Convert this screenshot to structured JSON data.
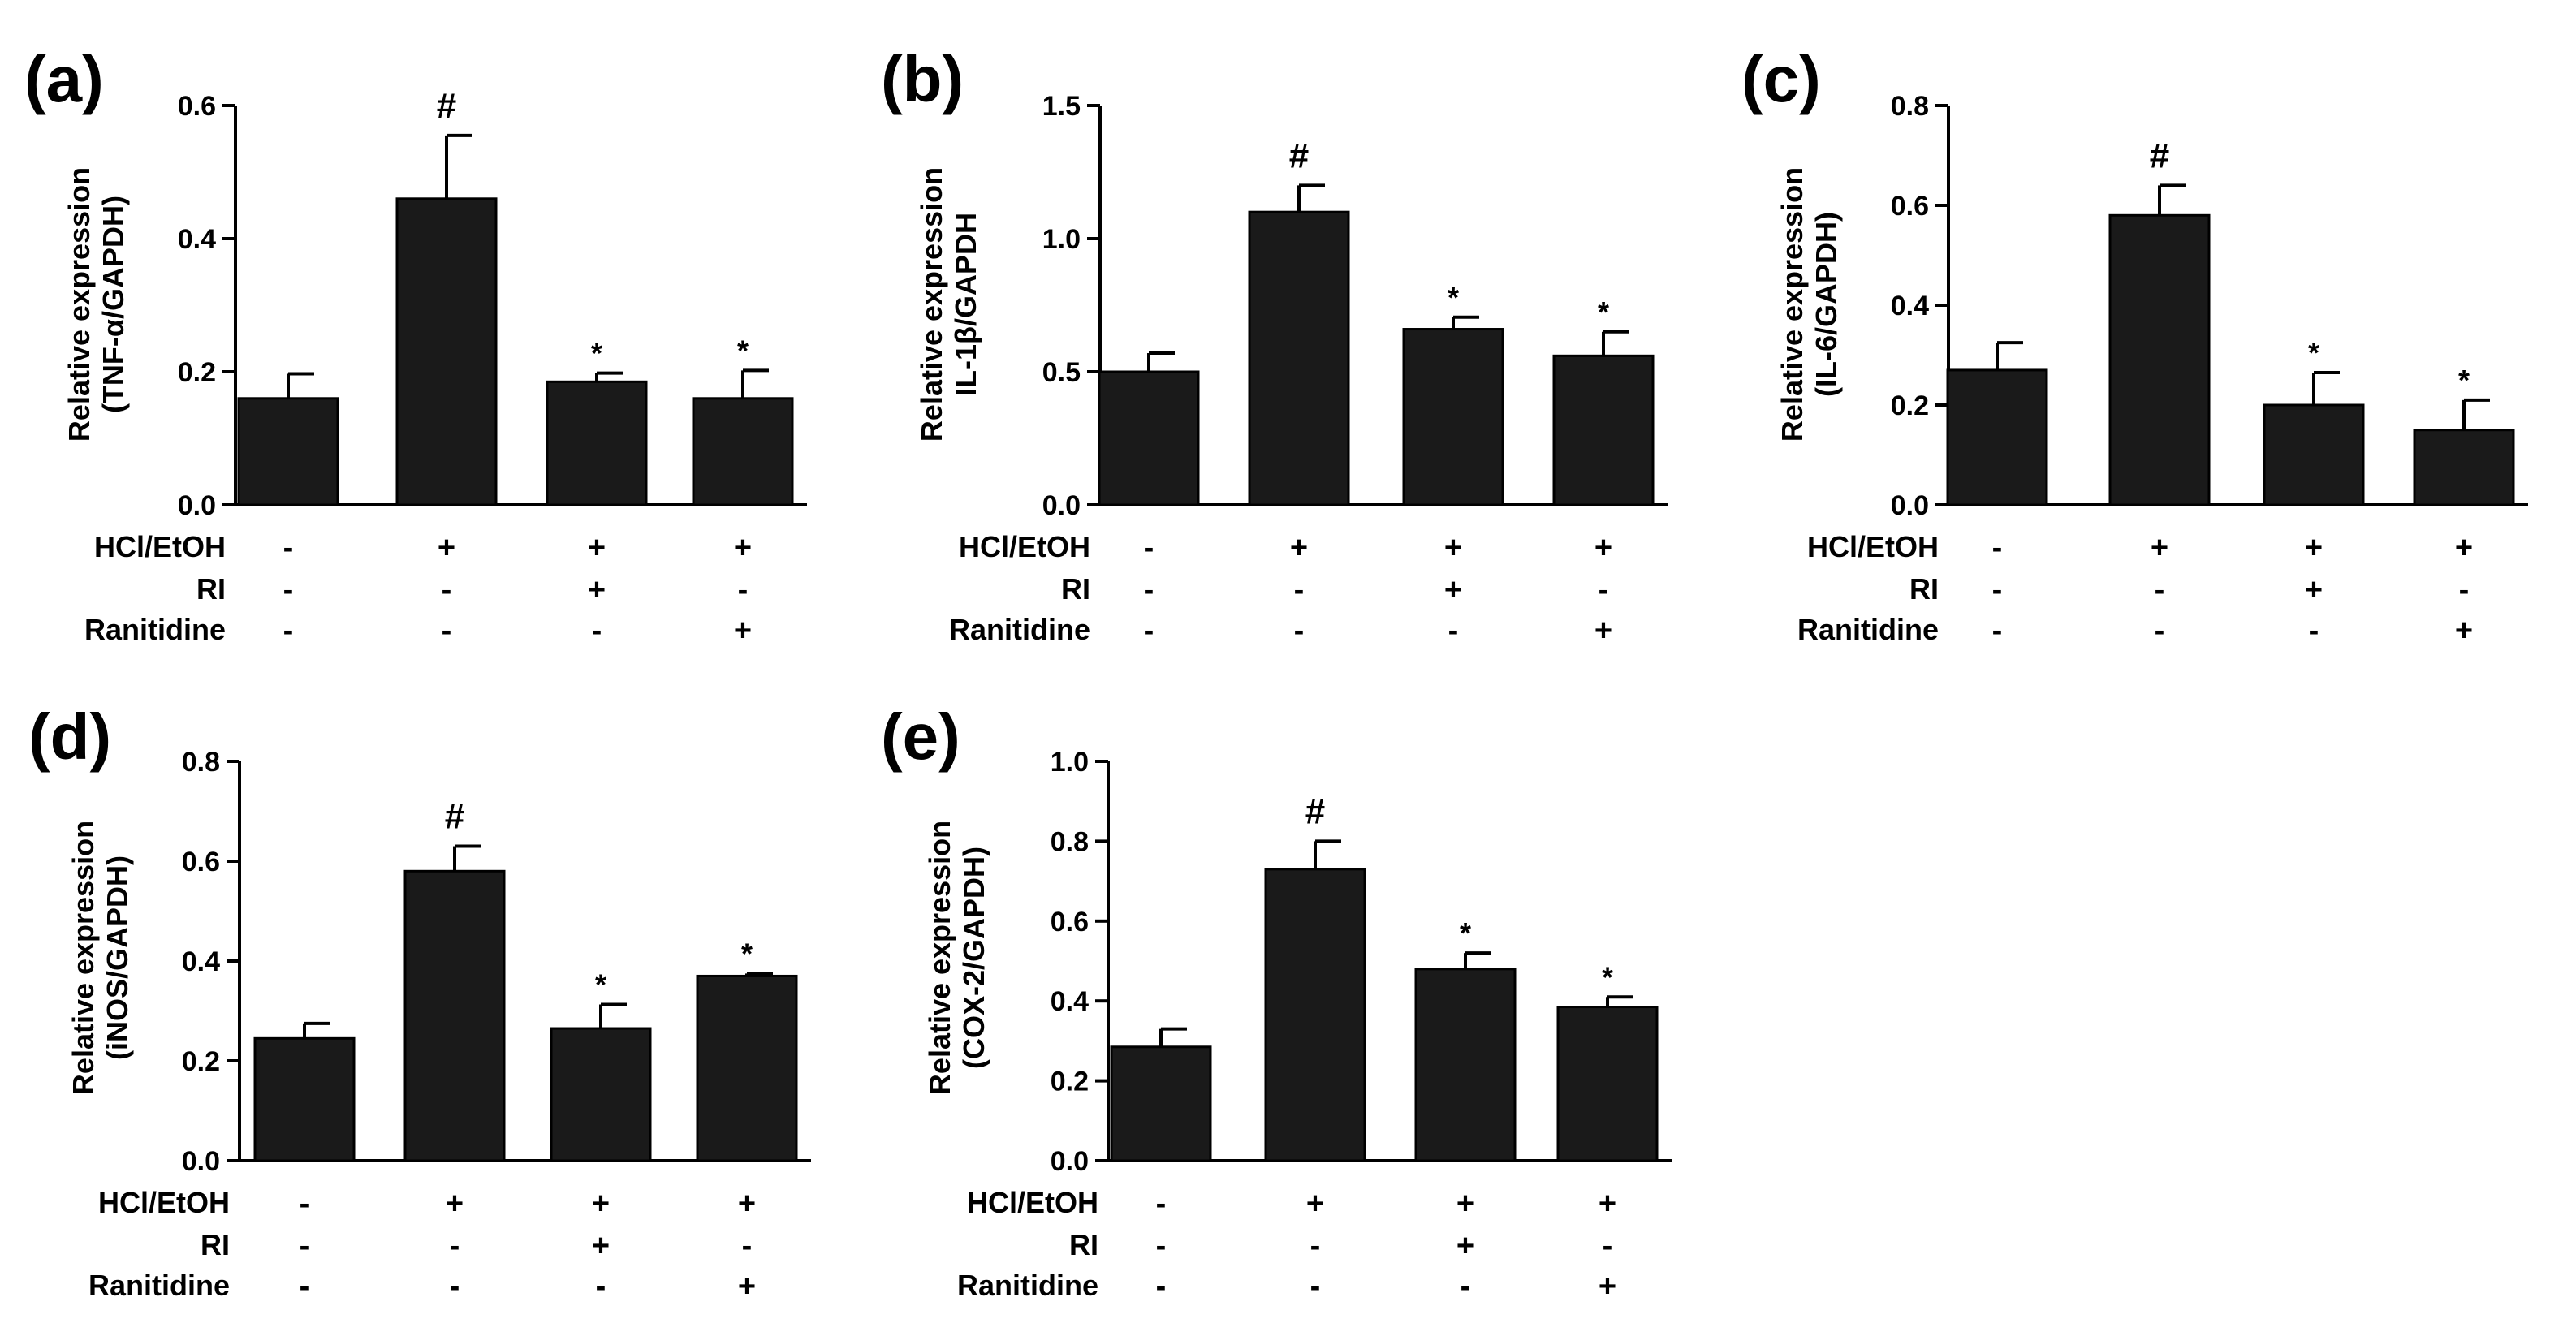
{
  "figure": {
    "row_names": [
      "HCl/EtOH",
      "RI",
      "Ranitidine"
    ],
    "conditions": [
      [
        "-",
        "-",
        "-"
      ],
      [
        "+",
        "-",
        "-"
      ],
      [
        "+",
        "+",
        "-"
      ],
      [
        "+",
        "-",
        "+"
      ]
    ]
  },
  "chart_data": [
    {
      "type": "bar",
      "panel": "(a)",
      "ylabel_lines": [
        "Relative expression",
        "(TNF-α/GAPDH)"
      ],
      "ylim": [
        0,
        0.6
      ],
      "yticks": [
        "0.0",
        "0.2",
        "0.4",
        "0.6"
      ],
      "values": [
        0.16,
        0.46,
        0.185,
        0.16
      ],
      "errors": [
        0.037,
        0.095,
        0.013,
        0.042
      ],
      "annotations": [
        "",
        "#",
        "*",
        "*"
      ],
      "bar_color": "#1a1a1a"
    },
    {
      "type": "bar",
      "panel": "(b)",
      "ylabel_lines": [
        "Relative expression",
        "IL-1β/GAPDH"
      ],
      "ylim": [
        0,
        1.5
      ],
      "yticks": [
        "0.0",
        "0.5",
        "1.0",
        "1.5"
      ],
      "values": [
        0.5,
        1.1,
        0.66,
        0.56
      ],
      "errors": [
        0.07,
        0.1,
        0.045,
        0.09
      ],
      "annotations": [
        "",
        "#",
        "*",
        "*"
      ],
      "bar_color": "#1a1a1a"
    },
    {
      "type": "bar",
      "panel": "(c)",
      "ylabel_lines": [
        "Relative expression",
        "(IL-6/GAPDH)"
      ],
      "ylim": [
        0,
        0.8
      ],
      "yticks": [
        "0.0",
        "0.2",
        "0.4",
        "0.6",
        "0.8"
      ],
      "values": [
        0.27,
        0.58,
        0.2,
        0.15
      ],
      "errors": [
        0.055,
        0.06,
        0.065,
        0.06
      ],
      "annotations": [
        "",
        "#",
        "*",
        "*"
      ],
      "bar_color": "#1a1a1a"
    },
    {
      "type": "bar",
      "panel": "(d)",
      "ylabel_lines": [
        "Relative expression",
        "(iNOS/GAPDH)"
      ],
      "ylim": [
        0,
        0.8
      ],
      "yticks": [
        "0.0",
        "0.2",
        "0.4",
        "0.6",
        "0.8"
      ],
      "values": [
        0.245,
        0.58,
        0.265,
        0.37
      ],
      "errors": [
        0.03,
        0.05,
        0.048,
        0.005
      ],
      "annotations": [
        "",
        "#",
        "*",
        "*"
      ],
      "bar_color": "#1a1a1a"
    },
    {
      "type": "bar",
      "panel": "(e)",
      "ylabel_lines": [
        "Relative expression",
        "(COX-2/GAPDH)"
      ],
      "ylim": [
        0,
        1.0
      ],
      "yticks": [
        "0.0",
        "0.2",
        "0.4",
        "0.6",
        "0.8",
        "1.0"
      ],
      "values": [
        0.285,
        0.73,
        0.48,
        0.385
      ],
      "errors": [
        0.045,
        0.07,
        0.04,
        0.025
      ],
      "annotations": [
        "",
        "#",
        "*",
        "*"
      ],
      "bar_color": "#1a1a1a"
    }
  ]
}
